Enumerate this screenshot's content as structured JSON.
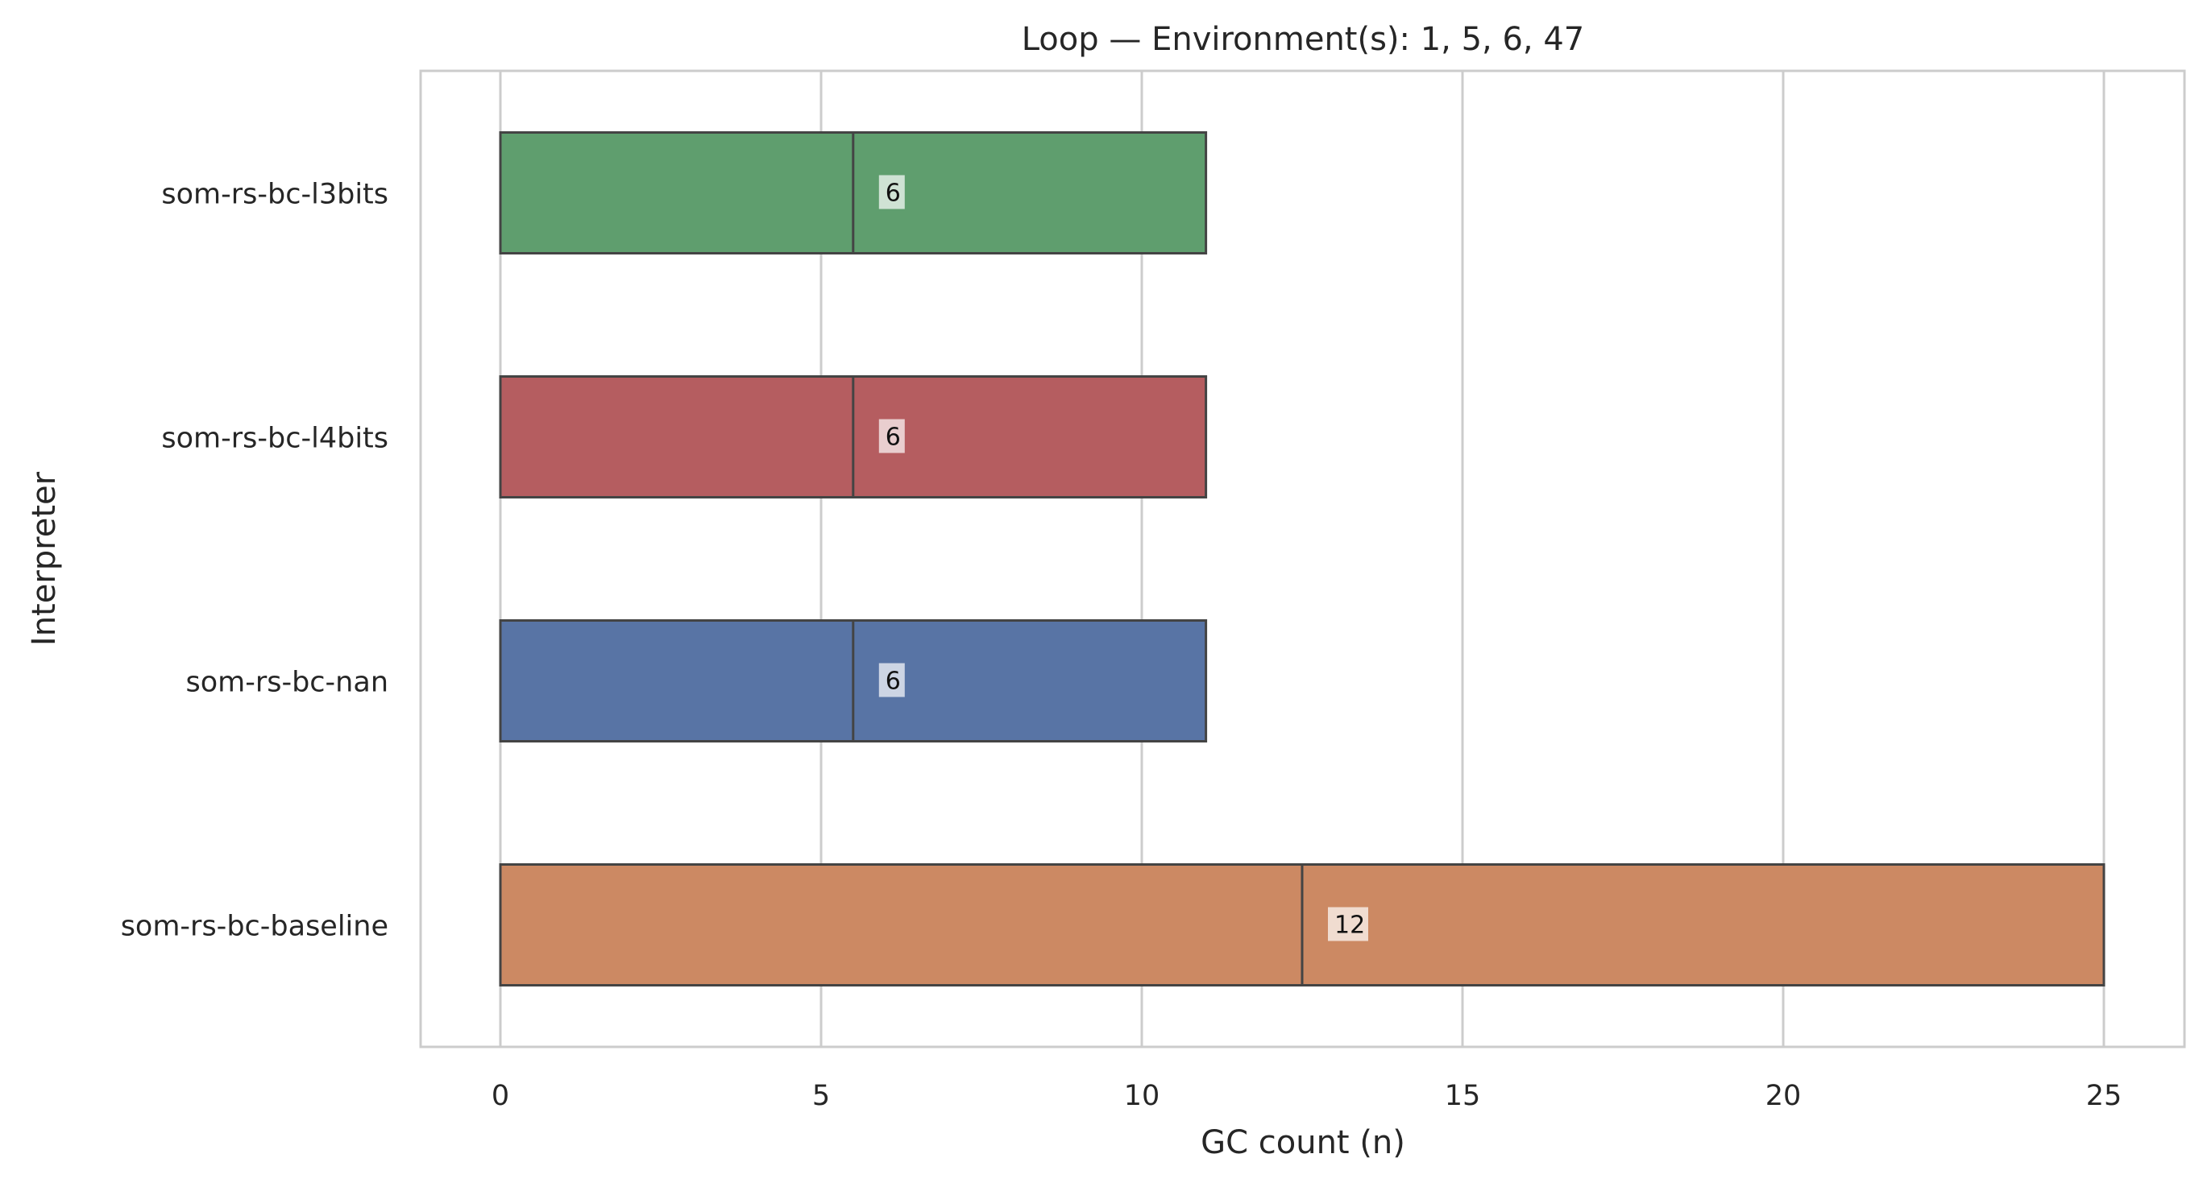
{
  "chart_data": {
    "type": "bar",
    "orientation": "horizontal",
    "title": "Loop — Environment(s): 1, 5, 6, 47",
    "xlabel": "GC count (n)",
    "ylabel": "Interpreter",
    "xlim": [
      -1.25,
      26.25
    ],
    "xticks": [
      0,
      5,
      10,
      15,
      20,
      25
    ],
    "grid": "vertical",
    "categories": [
      "som-rs-bc-l3bits",
      "som-rs-bc-l4bits",
      "som-rs-bc-nan",
      "som-rs-bc-baseline"
    ],
    "bars": [
      {
        "category": "som-rs-bc-l3bits",
        "start": 0,
        "end": 11,
        "median": 5.5,
        "label": "6",
        "color": "#5f9e6e"
      },
      {
        "category": "som-rs-bc-l4bits",
        "start": 0,
        "end": 11,
        "median": 5.5,
        "label": "6",
        "color": "#b55d60"
      },
      {
        "category": "som-rs-bc-nan",
        "start": 0,
        "end": 11,
        "median": 5.5,
        "label": "6",
        "color": "#5874a5"
      },
      {
        "category": "som-rs-bc-baseline",
        "start": 0,
        "end": 25,
        "median": 12.5,
        "label": "12",
        "color": "#cc8963"
      }
    ]
  }
}
